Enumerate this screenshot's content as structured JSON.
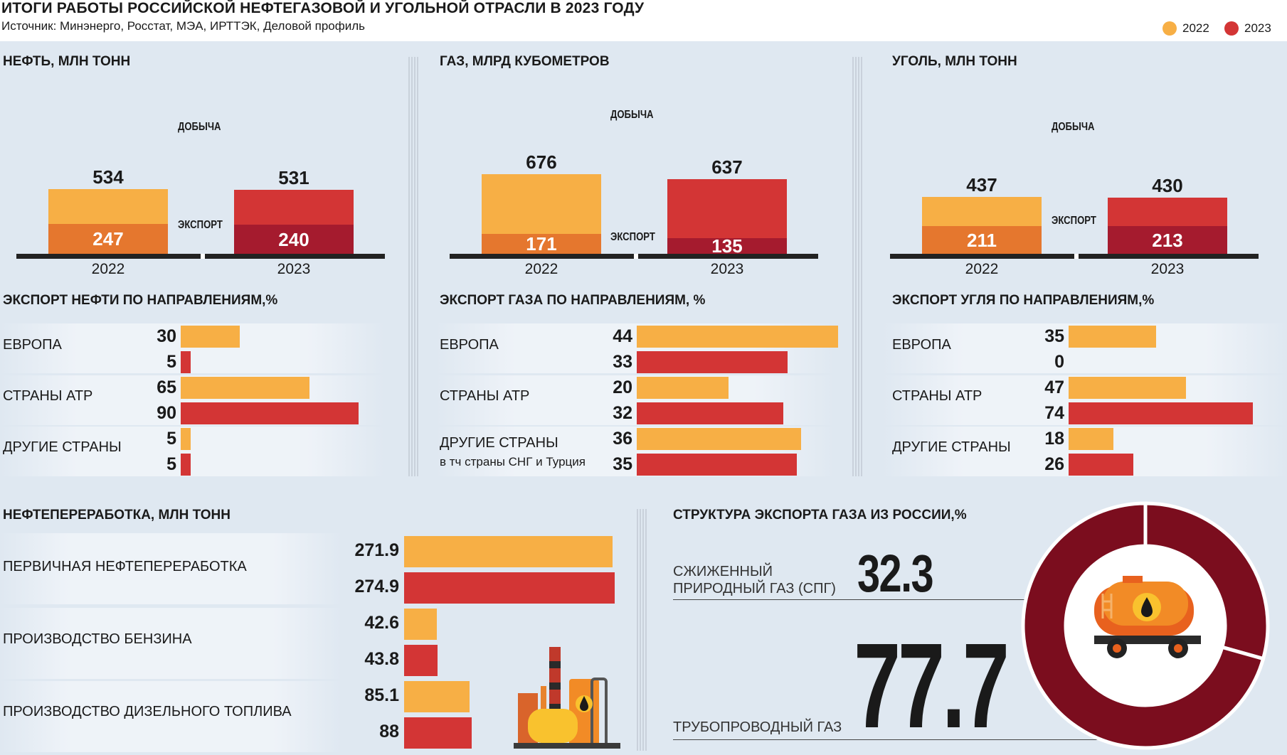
{
  "header": {
    "title": "ИТОГИ РАБОТЫ РОССИЙСКОЙ НЕФТЕГАЗОВОЙ И УГОЛЬНОЙ ОТРАСЛИ В 2023 ГОДУ",
    "source": "Источник: Минэнерго, Росстат, МЭА, ИРТТЭК, Деловой профиль"
  },
  "legend": {
    "y2022": "2022",
    "y2023": "2023",
    "color_2022": "#f7af45",
    "color_2023": "#d33535"
  },
  "labels": {
    "production": "ДОБЫЧА",
    "export": "ЭКСПОРТ"
  },
  "chart_data": [
    {
      "id": "oil",
      "type": "bar",
      "title": "НЕФТЬ, МЛН ТОНН",
      "categories": [
        "2022",
        "2023"
      ],
      "series": [
        {
          "name": "ДОБЫЧА",
          "values": [
            534,
            531
          ]
        },
        {
          "name": "ЭКСПОРТ",
          "values": [
            247,
            240
          ]
        }
      ]
    },
    {
      "id": "gas",
      "type": "bar",
      "title": "ГАЗ, МЛРД КУБОМЕТРОВ",
      "categories": [
        "2022",
        "2023"
      ],
      "series": [
        {
          "name": "ДОБЫЧА",
          "values": [
            676,
            637
          ]
        },
        {
          "name": "ЭКСПОРТ",
          "values": [
            171,
            135
          ]
        }
      ]
    },
    {
      "id": "coal",
      "type": "bar",
      "title": "УГОЛЬ, МЛН ТОНН",
      "categories": [
        "2022",
        "2023"
      ],
      "series": [
        {
          "name": "ДОБЫЧА",
          "values": [
            437,
            430
          ]
        },
        {
          "name": "ЭКСПОРТ",
          "values": [
            211,
            213
          ]
        }
      ]
    },
    {
      "id": "oil_export",
      "type": "bar",
      "title": "ЭКСПОРТ НЕФТИ ПО НАПРАВЛЕНИЯМ,%",
      "categories": [
        "ЕВРОПА",
        "СТРАНЫ АТР",
        "ДРУГИЕ СТРАНЫ"
      ],
      "series": [
        {
          "name": "2022",
          "values": [
            30,
            65,
            5
          ]
        },
        {
          "name": "2023",
          "values": [
            5,
            90,
            5
          ]
        }
      ]
    },
    {
      "id": "gas_export",
      "type": "bar",
      "title": "ЭКСПОРТ ГАЗА ПО НАПРАВЛЕНИЯМ, %",
      "categories": [
        "ЕВРОПА",
        "СТРАНЫ АТР",
        "ДРУГИЕ СТРАНЫ"
      ],
      "category_note": "в тч страны СНГ и Турция",
      "series": [
        {
          "name": "2022",
          "values": [
            44,
            20,
            36
          ]
        },
        {
          "name": "2023",
          "values": [
            33,
            32,
            35
          ]
        }
      ]
    },
    {
      "id": "coal_export",
      "type": "bar",
      "title": "ЭКСПОРТ УГЛЯ ПО НАПРАВЛЕНИЯМ,%",
      "categories": [
        "ЕВРОПА",
        "СТРАНЫ АТР",
        "ДРУГИЕ СТРАНЫ"
      ],
      "series": [
        {
          "name": "2022",
          "values": [
            35,
            47,
            18
          ]
        },
        {
          "name": "2023",
          "values": [
            0,
            74,
            26
          ]
        }
      ]
    },
    {
      "id": "refining",
      "type": "bar",
      "title": "НЕФТЕПЕРЕРАБОТКА, МЛН ТОНН",
      "categories": [
        "ПЕРВИЧНАЯ НЕФТЕПЕРЕРАБОТКА",
        "ПРОИЗВОДСТВО БЕНЗИНА",
        "ПРОИЗВОДСТВО ДИЗЕЛЬНОГО ТОПЛИВА"
      ],
      "series": [
        {
          "name": "2022",
          "values": [
            271.9,
            42.6,
            85.1
          ]
        },
        {
          "name": "2023",
          "values": [
            274.9,
            43.8,
            88
          ]
        }
      ]
    },
    {
      "id": "gas_structure",
      "type": "pie",
      "title": "СТРУКТУРА ЭКСПОРТА ГАЗА ИЗ РОССИИ,%",
      "slices": [
        {
          "label": "СЖИЖЕННЫЙ ПРИРОДНЫЙ ГАЗ (СПГ)",
          "value": 32.3
        },
        {
          "label": "ТРУБОПРОВОДНЫЙ ГАЗ",
          "value": 77.7
        }
      ]
    }
  ],
  "icons": [
    "oil-tanker-truck-icon",
    "refinery-icon",
    "oil-drop-icon"
  ]
}
